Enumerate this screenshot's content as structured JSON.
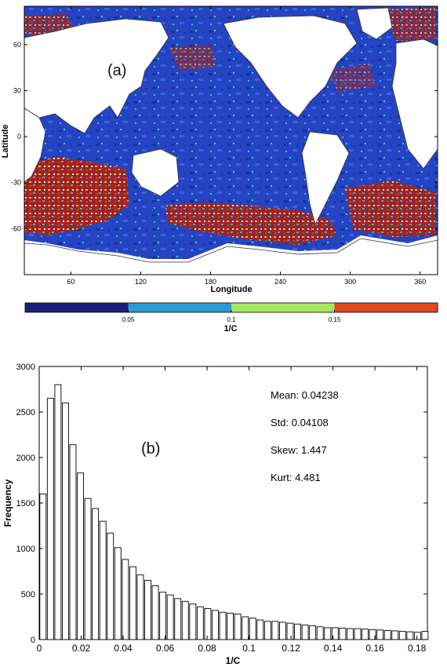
{
  "chart_data": [
    {
      "type": "heatmap",
      "panel_label": "(a)",
      "xlabel": "Longitude",
      "ylabel": "Latitude",
      "xlim": [
        20,
        375
      ],
      "ylim": [
        -90,
        85
      ],
      "xticks": [
        "60",
        "120",
        "180",
        "240",
        "300",
        "360"
      ],
      "yticks": [
        "60",
        "30",
        "0",
        "-30",
        "-60"
      ],
      "colorbar": {
        "label": "1/C",
        "ticks": [
          "0.05",
          "0.1",
          "0.15"
        ],
        "colors": [
          "#1a1f7a",
          "#2a9ad6",
          "#a6e85f",
          "#e04a1e"
        ]
      }
    },
    {
      "type": "bar",
      "panel_label": "(b)",
      "xlabel": "1/C",
      "ylabel": "Frequency",
      "xlim": [
        0,
        0.185
      ],
      "ylim": [
        0,
        3000
      ],
      "xticks": [
        "0",
        "0.02",
        "0.04",
        "0.06",
        "0.08",
        "0.1",
        "0.12",
        "0.14",
        "0.16",
        "0.18"
      ],
      "yticks": [
        "0",
        "500",
        "1000",
        "1500",
        "2000",
        "2500",
        "3000"
      ],
      "bin_width": 0.00357,
      "values": [
        1600,
        2650,
        2800,
        2600,
        2140,
        1830,
        1550,
        1440,
        1300,
        1170,
        1010,
        880,
        800,
        710,
        650,
        590,
        520,
        490,
        450,
        420,
        390,
        360,
        340,
        320,
        300,
        290,
        280,
        250,
        235,
        215,
        200,
        200,
        190,
        180,
        170,
        160,
        150,
        140,
        130,
        130,
        125,
        120,
        120,
        115,
        110,
        105,
        100,
        95,
        90,
        85,
        80,
        90
      ],
      "stats": {
        "mean": "Mean: 0.04238",
        "std": "Std: 0.04108",
        "skew": "Skew: 1.447",
        "kurt": "Kurt: 4.481"
      }
    }
  ]
}
